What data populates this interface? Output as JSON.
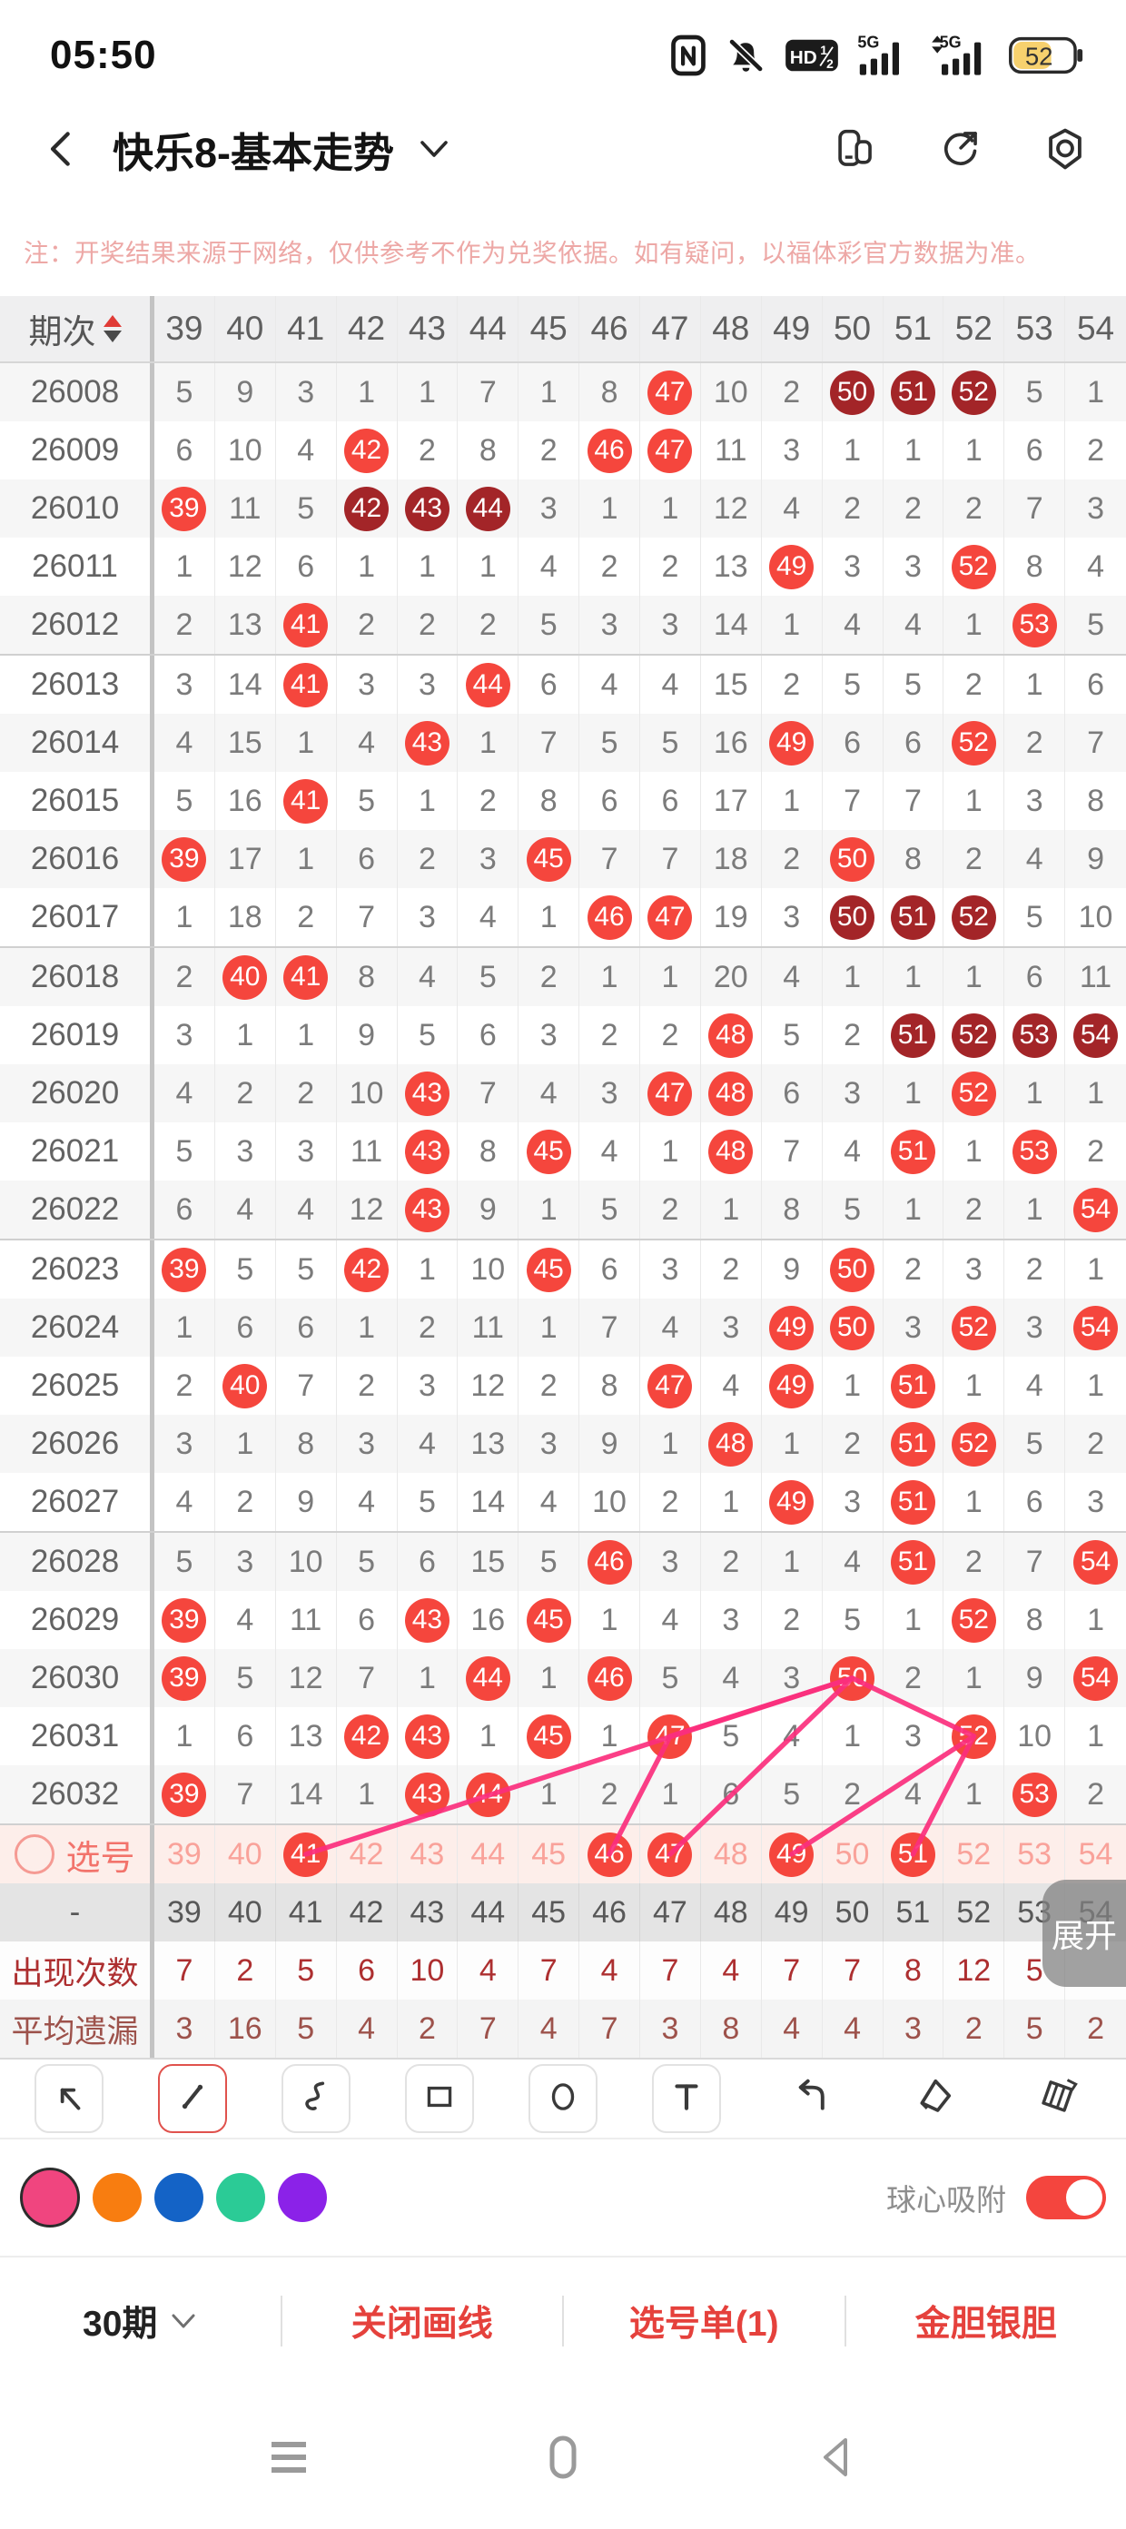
{
  "status_bar": {
    "time": "05:50",
    "hd_label": "HD",
    "hd_frac_top": "1",
    "hd_frac_bottom": "2",
    "signal1_label": "5G",
    "signal2_label": "5G",
    "battery_percent": "52"
  },
  "header": {
    "title": "快乐8-基本走势"
  },
  "notice": "注：开奖结果来源于网络，仅供参考不作为兑奖依据。如有疑问，以福体彩官方数据为准。",
  "table": {
    "index_header": "期次",
    "columns": [
      "39",
      "40",
      "41",
      "42",
      "43",
      "44",
      "45",
      "46",
      "47",
      "48",
      "49",
      "50",
      "51",
      "52",
      "53",
      "54"
    ],
    "cell_encoding": {
      "b:": "red drawn-number ball",
      "d:": "dark-red repeat ball",
      "plain": "omission count"
    },
    "rows": [
      {
        "period": "26008",
        "cells": [
          "5",
          "9",
          "3",
          "1",
          "1",
          "7",
          "1",
          "8",
          "b:47",
          "10",
          "2",
          "d:50",
          "d:51",
          "d:52",
          "5",
          "1"
        ]
      },
      {
        "period": "26009",
        "cells": [
          "6",
          "10",
          "4",
          "b:42",
          "2",
          "8",
          "2",
          "b:46",
          "b:47",
          "11",
          "3",
          "1",
          "1",
          "1",
          "6",
          "2"
        ]
      },
      {
        "period": "26010",
        "cells": [
          "b:39",
          "11",
          "5",
          "d:42",
          "d:43",
          "d:44",
          "3",
          "1",
          "1",
          "12",
          "4",
          "2",
          "2",
          "2",
          "7",
          "3"
        ]
      },
      {
        "period": "26011",
        "cells": [
          "1",
          "12",
          "6",
          "1",
          "1",
          "1",
          "4",
          "2",
          "2",
          "13",
          "b:49",
          "3",
          "3",
          "b:52",
          "8",
          "4"
        ]
      },
      {
        "period": "26012",
        "cells": [
          "2",
          "13",
          "b:41",
          "2",
          "2",
          "2",
          "5",
          "3",
          "3",
          "14",
          "1",
          "4",
          "4",
          "1",
          "b:53",
          "5"
        ]
      },
      {
        "period": "26013",
        "cells": [
          "3",
          "14",
          "b:41",
          "3",
          "3",
          "b:44",
          "6",
          "4",
          "4",
          "15",
          "2",
          "5",
          "5",
          "2",
          "1",
          "6"
        ]
      },
      {
        "period": "26014",
        "cells": [
          "4",
          "15",
          "1",
          "4",
          "b:43",
          "1",
          "7",
          "5",
          "5",
          "16",
          "b:49",
          "6",
          "6",
          "b:52",
          "2",
          "7"
        ]
      },
      {
        "period": "26015",
        "cells": [
          "5",
          "16",
          "b:41",
          "5",
          "1",
          "2",
          "8",
          "6",
          "6",
          "17",
          "1",
          "7",
          "7",
          "1",
          "3",
          "8"
        ]
      },
      {
        "period": "26016",
        "cells": [
          "b:39",
          "17",
          "1",
          "6",
          "2",
          "3",
          "b:45",
          "7",
          "7",
          "18",
          "2",
          "b:50",
          "8",
          "2",
          "4",
          "9"
        ]
      },
      {
        "period": "26017",
        "cells": [
          "1",
          "18",
          "2",
          "7",
          "3",
          "4",
          "1",
          "b:46",
          "b:47",
          "19",
          "3",
          "d:50",
          "d:51",
          "d:52",
          "5",
          "10"
        ]
      },
      {
        "period": "26018",
        "cells": [
          "2",
          "b:40",
          "b:41",
          "8",
          "4",
          "5",
          "2",
          "1",
          "1",
          "20",
          "4",
          "1",
          "1",
          "1",
          "6",
          "11"
        ]
      },
      {
        "period": "26019",
        "cells": [
          "3",
          "1",
          "1",
          "9",
          "5",
          "6",
          "3",
          "2",
          "2",
          "b:48",
          "5",
          "2",
          "d:51",
          "d:52",
          "d:53",
          "d:54"
        ]
      },
      {
        "period": "26020",
        "cells": [
          "4",
          "2",
          "2",
          "10",
          "b:43",
          "7",
          "4",
          "3",
          "b:47",
          "b:48",
          "6",
          "3",
          "1",
          "b:52",
          "1",
          "1"
        ]
      },
      {
        "period": "26021",
        "cells": [
          "5",
          "3",
          "3",
          "11",
          "b:43",
          "8",
          "b:45",
          "4",
          "1",
          "b:48",
          "7",
          "4",
          "b:51",
          "1",
          "b:53",
          "2"
        ]
      },
      {
        "period": "26022",
        "cells": [
          "6",
          "4",
          "4",
          "12",
          "b:43",
          "9",
          "1",
          "5",
          "2",
          "1",
          "8",
          "5",
          "1",
          "2",
          "1",
          "b:54"
        ]
      },
      {
        "period": "26023",
        "cells": [
          "b:39",
          "5",
          "5",
          "b:42",
          "1",
          "10",
          "b:45",
          "6",
          "3",
          "2",
          "9",
          "b:50",
          "2",
          "3",
          "2",
          "1"
        ]
      },
      {
        "period": "26024",
        "cells": [
          "1",
          "6",
          "6",
          "1",
          "2",
          "11",
          "1",
          "7",
          "4",
          "3",
          "b:49",
          "b:50",
          "3",
          "b:52",
          "3",
          "b:54"
        ]
      },
      {
        "period": "26025",
        "cells": [
          "2",
          "b:40",
          "7",
          "2",
          "3",
          "12",
          "2",
          "8",
          "b:47",
          "4",
          "b:49",
          "1",
          "b:51",
          "1",
          "4",
          "1"
        ]
      },
      {
        "period": "26026",
        "cells": [
          "3",
          "1",
          "8",
          "3",
          "4",
          "13",
          "3",
          "9",
          "1",
          "b:48",
          "1",
          "2",
          "b:51",
          "b:52",
          "5",
          "2"
        ]
      },
      {
        "period": "26027",
        "cells": [
          "4",
          "2",
          "9",
          "4",
          "5",
          "14",
          "4",
          "10",
          "2",
          "1",
          "b:49",
          "3",
          "b:51",
          "1",
          "6",
          "3"
        ]
      },
      {
        "period": "26028",
        "cells": [
          "5",
          "3",
          "10",
          "5",
          "6",
          "15",
          "5",
          "b:46",
          "3",
          "2",
          "1",
          "4",
          "b:51",
          "2",
          "7",
          "b:54"
        ]
      },
      {
        "period": "26029",
        "cells": [
          "b:39",
          "4",
          "11",
          "6",
          "b:43",
          "16",
          "b:45",
          "1",
          "4",
          "3",
          "2",
          "5",
          "1",
          "b:52",
          "8",
          "1"
        ]
      },
      {
        "period": "26030",
        "cells": [
          "b:39",
          "5",
          "12",
          "7",
          "1",
          "b:44",
          "1",
          "b:46",
          "5",
          "4",
          "3",
          "b:50",
          "2",
          "1",
          "9",
          "b:54"
        ]
      },
      {
        "period": "26031",
        "cells": [
          "1",
          "6",
          "13",
          "b:42",
          "b:43",
          "1",
          "b:45",
          "1",
          "b:47",
          "5",
          "4",
          "1",
          "3",
          "b:52",
          "10",
          "1"
        ]
      },
      {
        "period": "26032",
        "cells": [
          "b:39",
          "7",
          "14",
          "1",
          "b:43",
          "b:44",
          "1",
          "2",
          "1",
          "6",
          "5",
          "2",
          "4",
          "1",
          "b:53",
          "2"
        ]
      }
    ],
    "xuanhao_label": "选号",
    "xuanhao_cells": [
      "39",
      "40",
      "b:41",
      "42",
      "43",
      "44",
      "45",
      "b:46",
      "b:47",
      "48",
      "b:49",
      "50",
      "b:51",
      "52",
      "53",
      "54"
    ],
    "dash_label": "-",
    "dash_cells": [
      "39",
      "40",
      "41",
      "42",
      "43",
      "44",
      "45",
      "46",
      "47",
      "48",
      "49",
      "50",
      "51",
      "52",
      "53",
      "54"
    ],
    "chuxian_label": "出现次数",
    "chuxian_cells": [
      "7",
      "2",
      "5",
      "6",
      "10",
      "4",
      "7",
      "4",
      "7",
      "4",
      "7",
      "7",
      "8",
      "12",
      "5",
      ""
    ],
    "pingjun_label": "平均遗漏",
    "pingjun_cells": [
      "3",
      "16",
      "5",
      "4",
      "2",
      "7",
      "4",
      "7",
      "3",
      "8",
      "4",
      "4",
      "3",
      "2",
      "5",
      "2"
    ],
    "expand_label": "展开"
  },
  "lines": [
    {
      "from": [
        "xh",
        "41"
      ],
      "to": [
        "26030",
        "50"
      ]
    },
    {
      "from": [
        "26030",
        "50"
      ],
      "to": [
        "26031",
        "47"
      ]
    },
    {
      "from": [
        "26031",
        "47"
      ],
      "to": [
        "xh",
        "46"
      ]
    },
    {
      "from": [
        "26030",
        "50"
      ],
      "to": [
        "xh",
        "47"
      ]
    },
    {
      "from": [
        "26030",
        "50"
      ],
      "to": [
        "26031",
        "52"
      ]
    },
    {
      "from": [
        "26031",
        "52"
      ],
      "to": [
        "xh",
        "49"
      ]
    },
    {
      "from": [
        "26031",
        "52"
      ],
      "to": [
        "xh",
        "51"
      ]
    }
  ],
  "toolbar": {
    "tools": [
      "arrow-tool",
      "line-tool",
      "curve-tool",
      "rect-tool",
      "ellipse-tool",
      "text-tool",
      "undo-tool",
      "eraser-tool",
      "clear-brush-tool"
    ],
    "selected_tool": "line-tool"
  },
  "palette": {
    "colors": [
      "#f0457f",
      "#f87d10",
      "#1463c6",
      "#2bcb96",
      "#8b22e8"
    ],
    "selected_index": 0,
    "snap_label": "球心吸附",
    "snap_on": true
  },
  "bottom_bar": {
    "period_label": "30期",
    "actions": [
      "关闭画线",
      "选号单(1)",
      "金胆银胆"
    ]
  },
  "colors": {
    "ball_red": "#f5463d",
    "ball_dark_red": "#a32528",
    "line_pink": "#fb2f7d",
    "accent_red": "#e5413c",
    "toggle_red": "#f4453e"
  }
}
